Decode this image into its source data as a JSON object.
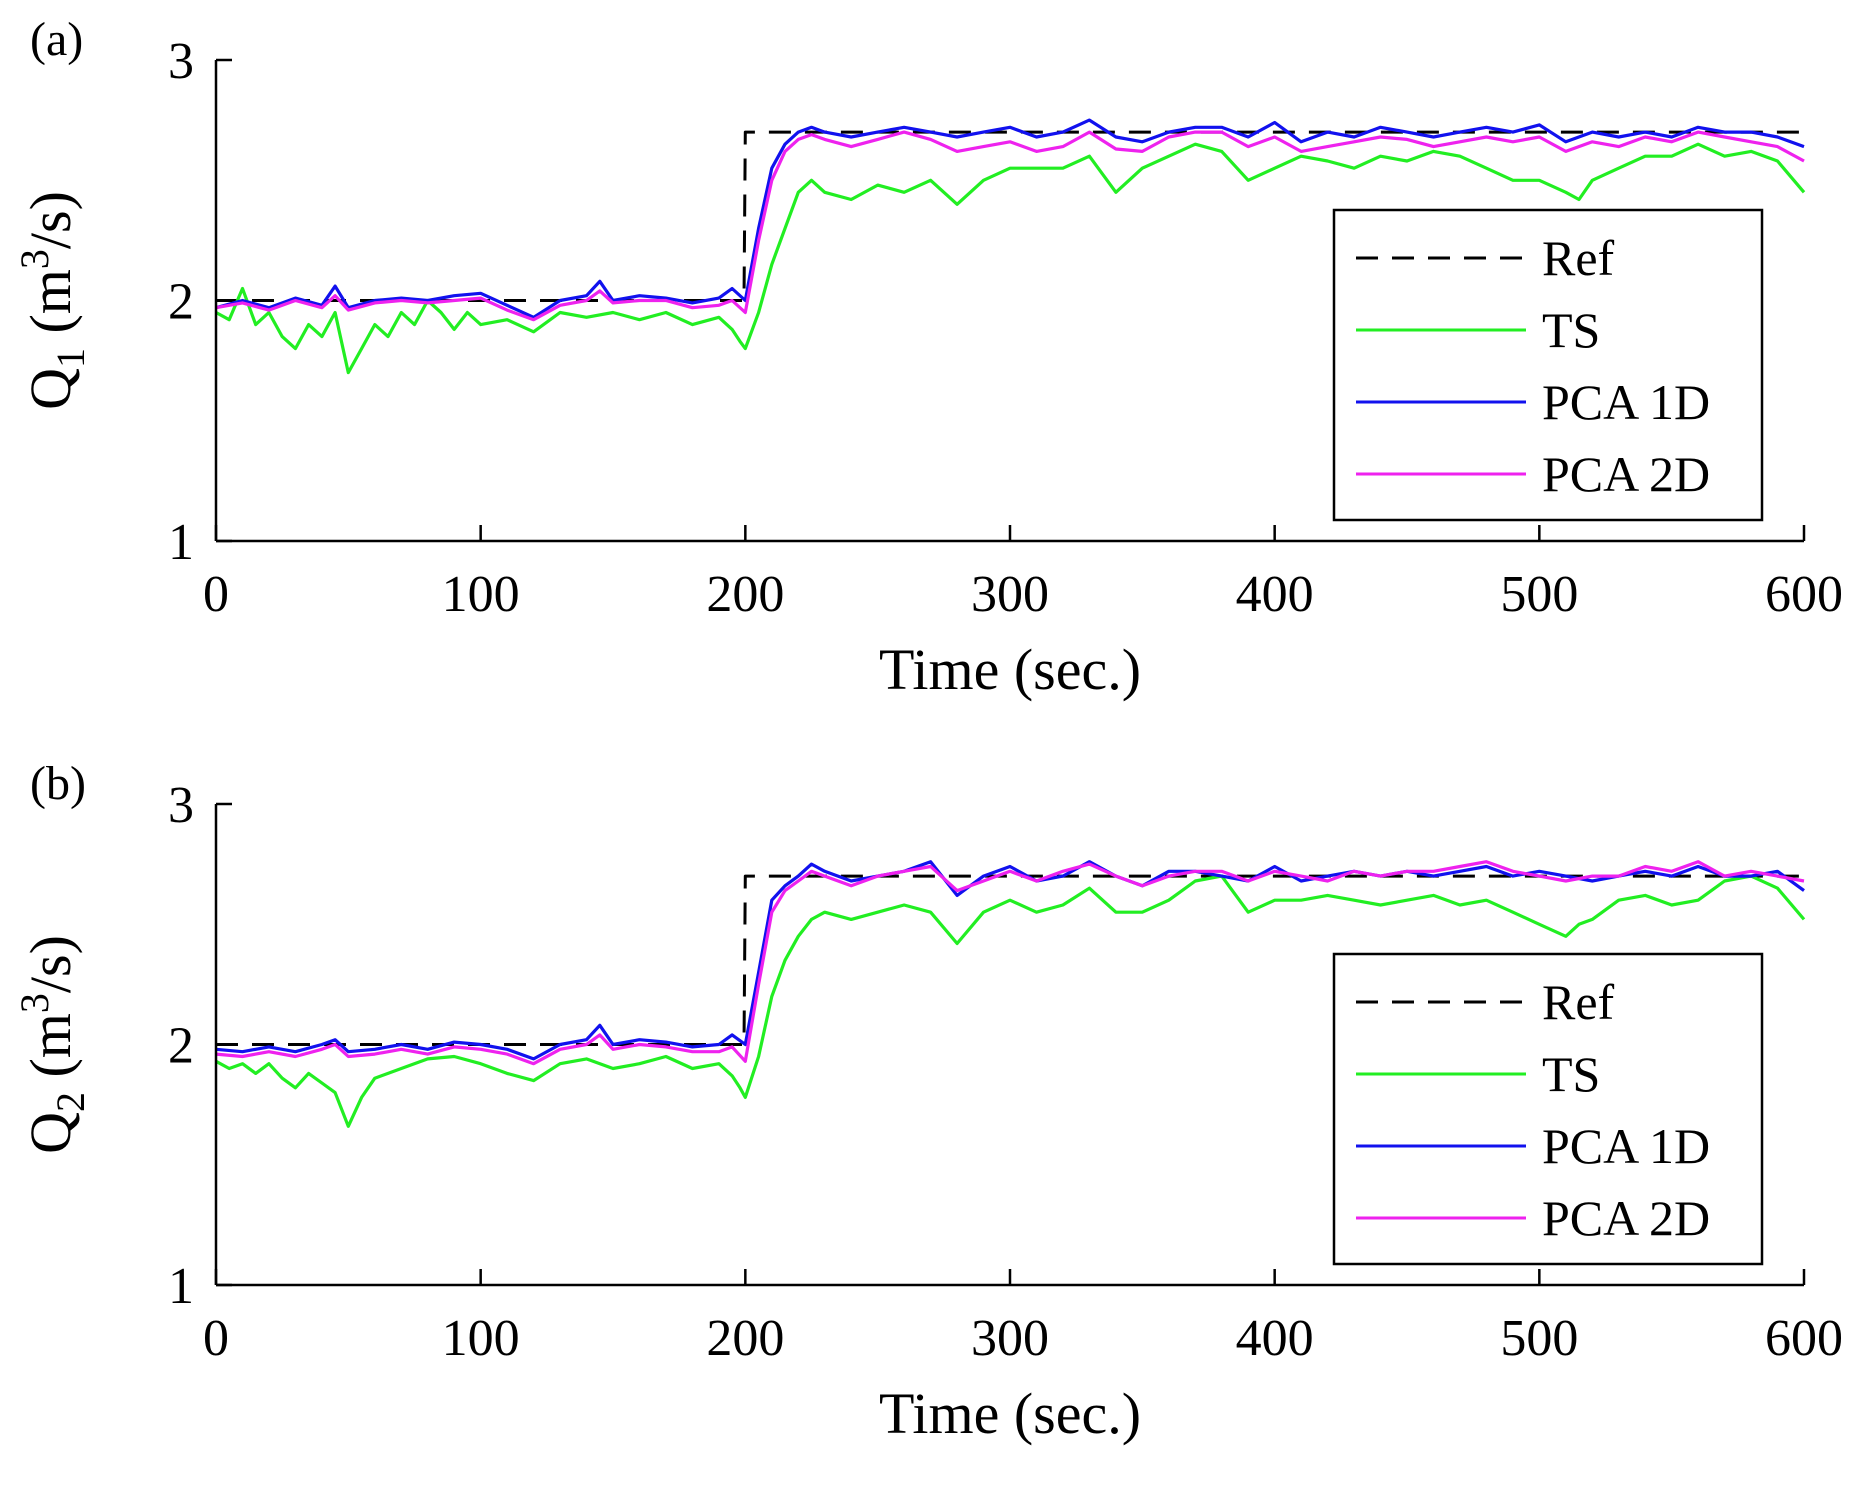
{
  "chart_data": [
    {
      "type": "line",
      "panel_label": "(a)",
      "xlabel": "Time (sec.)",
      "ylabel": {
        "base": "Q",
        "sub": "1",
        "units_pre": " (m",
        "sup": "3",
        "units_post": "/s)"
      },
      "xlim": [
        0,
        600
      ],
      "ylim": [
        1,
        3
      ],
      "xticks": [
        0,
        100,
        200,
        300,
        400,
        500,
        600
      ],
      "yticks": [
        1,
        2,
        3
      ],
      "legend_position": "right",
      "legend": [
        "Ref",
        "TS",
        "PCA 1D",
        "PCA 2D"
      ],
      "series": [
        {
          "name": "Ref",
          "color": "#000000",
          "style": "dashed",
          "x": [
            0,
            199.5,
            200,
            600
          ],
          "y": [
            2.0,
            2.0,
            2.7,
            2.7
          ]
        },
        {
          "name": "TS",
          "color": "#22ee22",
          "style": "solid",
          "x": [
            0,
            5,
            10,
            15,
            20,
            25,
            30,
            35,
            40,
            45,
            50,
            55,
            60,
            65,
            70,
            75,
            80,
            85,
            90,
            95,
            100,
            110,
            120,
            130,
            140,
            150,
            160,
            170,
            180,
            190,
            195,
            198,
            200,
            205,
            210,
            215,
            220,
            225,
            230,
            240,
            250,
            260,
            270,
            280,
            290,
            300,
            310,
            320,
            330,
            340,
            350,
            360,
            370,
            380,
            390,
            400,
            410,
            420,
            430,
            440,
            450,
            460,
            470,
            480,
            490,
            500,
            510,
            515,
            520,
            530,
            540,
            550,
            560,
            570,
            580,
            590,
            600
          ],
          "y": [
            1.95,
            1.92,
            2.05,
            1.9,
            1.95,
            1.85,
            1.8,
            1.9,
            1.85,
            1.95,
            1.7,
            1.8,
            1.9,
            1.85,
            1.95,
            1.9,
            2.0,
            1.95,
            1.88,
            1.95,
            1.9,
            1.92,
            1.87,
            1.95,
            1.93,
            1.95,
            1.92,
            1.95,
            1.9,
            1.93,
            1.88,
            1.83,
            1.8,
            1.95,
            2.15,
            2.3,
            2.45,
            2.5,
            2.45,
            2.42,
            2.48,
            2.45,
            2.5,
            2.4,
            2.5,
            2.55,
            2.55,
            2.55,
            2.6,
            2.45,
            2.55,
            2.6,
            2.65,
            2.62,
            2.5,
            2.55,
            2.6,
            2.58,
            2.55,
            2.6,
            2.58,
            2.62,
            2.6,
            2.55,
            2.5,
            2.5,
            2.45,
            2.42,
            2.5,
            2.55,
            2.6,
            2.6,
            2.65,
            2.6,
            2.62,
            2.58,
            2.45
          ]
        },
        {
          "name": "PCA 1D",
          "color": "#1111ee",
          "style": "solid",
          "x": [
            0,
            10,
            20,
            30,
            40,
            45,
            50,
            60,
            70,
            80,
            90,
            100,
            110,
            120,
            130,
            140,
            145,
            150,
            160,
            170,
            180,
            190,
            195,
            200,
            205,
            210,
            215,
            220,
            225,
            230,
            240,
            250,
            260,
            270,
            280,
            290,
            300,
            310,
            320,
            330,
            340,
            350,
            360,
            370,
            380,
            390,
            400,
            410,
            420,
            430,
            440,
            450,
            460,
            470,
            480,
            490,
            500,
            510,
            520,
            530,
            540,
            550,
            560,
            570,
            580,
            590,
            600
          ],
          "y": [
            1.97,
            2.0,
            1.97,
            2.01,
            1.98,
            2.06,
            1.97,
            2.0,
            2.01,
            2.0,
            2.02,
            2.03,
            1.98,
            1.93,
            2.0,
            2.02,
            2.08,
            2.0,
            2.02,
            2.01,
            1.99,
            2.01,
            2.05,
            2.0,
            2.3,
            2.55,
            2.65,
            2.7,
            2.72,
            2.7,
            2.68,
            2.7,
            2.72,
            2.7,
            2.68,
            2.7,
            2.72,
            2.68,
            2.7,
            2.75,
            2.68,
            2.66,
            2.7,
            2.72,
            2.72,
            2.68,
            2.74,
            2.66,
            2.7,
            2.68,
            2.72,
            2.7,
            2.68,
            2.7,
            2.72,
            2.7,
            2.73,
            2.66,
            2.7,
            2.68,
            2.7,
            2.68,
            2.72,
            2.7,
            2.7,
            2.68,
            2.64
          ]
        },
        {
          "name": "PCA 2D",
          "color": "#ee22ee",
          "style": "solid",
          "x": [
            0,
            10,
            20,
            30,
            40,
            45,
            50,
            60,
            70,
            80,
            90,
            100,
            110,
            120,
            130,
            140,
            145,
            150,
            160,
            170,
            180,
            190,
            195,
            200,
            205,
            210,
            215,
            220,
            225,
            230,
            240,
            250,
            260,
            270,
            280,
            290,
            300,
            310,
            320,
            330,
            340,
            350,
            360,
            370,
            380,
            390,
            400,
            410,
            420,
            430,
            440,
            450,
            460,
            470,
            480,
            490,
            500,
            510,
            520,
            530,
            540,
            550,
            560,
            570,
            580,
            590,
            600
          ],
          "y": [
            1.97,
            1.99,
            1.96,
            2.0,
            1.97,
            2.02,
            1.96,
            1.99,
            2.0,
            1.99,
            2.0,
            2.01,
            1.96,
            1.92,
            1.98,
            2.0,
            2.04,
            1.99,
            2.0,
            2.0,
            1.97,
            1.98,
            2.0,
            1.95,
            2.25,
            2.5,
            2.62,
            2.67,
            2.69,
            2.67,
            2.64,
            2.67,
            2.7,
            2.67,
            2.62,
            2.64,
            2.66,
            2.62,
            2.64,
            2.7,
            2.63,
            2.62,
            2.68,
            2.7,
            2.7,
            2.64,
            2.68,
            2.62,
            2.64,
            2.66,
            2.68,
            2.67,
            2.64,
            2.66,
            2.68,
            2.66,
            2.68,
            2.62,
            2.66,
            2.64,
            2.68,
            2.66,
            2.7,
            2.68,
            2.66,
            2.64,
            2.58
          ]
        }
      ]
    },
    {
      "type": "line",
      "panel_label": "(b)",
      "xlabel": "Time (sec.)",
      "ylabel": {
        "base": "Q",
        "sub": "2",
        "units_pre": " (m",
        "sup": "3",
        "units_post": "/s)"
      },
      "xlim": [
        0,
        600
      ],
      "ylim": [
        1,
        3
      ],
      "xticks": [
        0,
        100,
        200,
        300,
        400,
        500,
        600
      ],
      "yticks": [
        1,
        2,
        3
      ],
      "legend_position": "right",
      "legend": [
        "Ref",
        "TS",
        "PCA 1D",
        "PCA 2D"
      ],
      "series": [
        {
          "name": "Ref",
          "color": "#000000",
          "style": "dashed",
          "x": [
            0,
            199.5,
            200,
            600
          ],
          "y": [
            2.0,
            2.0,
            2.7,
            2.7
          ]
        },
        {
          "name": "TS",
          "color": "#22ee22",
          "style": "solid",
          "x": [
            0,
            5,
            10,
            15,
            20,
            25,
            30,
            35,
            40,
            45,
            50,
            55,
            60,
            70,
            80,
            90,
            100,
            110,
            120,
            130,
            140,
            150,
            160,
            170,
            180,
            190,
            195,
            198,
            200,
            205,
            210,
            215,
            220,
            225,
            230,
            240,
            250,
            260,
            270,
            280,
            290,
            300,
            310,
            320,
            330,
            340,
            350,
            360,
            370,
            380,
            390,
            400,
            410,
            420,
            430,
            440,
            450,
            460,
            470,
            480,
            490,
            500,
            510,
            515,
            520,
            530,
            540,
            550,
            560,
            570,
            580,
            590,
            600
          ],
          "y": [
            1.93,
            1.9,
            1.92,
            1.88,
            1.92,
            1.86,
            1.82,
            1.88,
            1.84,
            1.8,
            1.66,
            1.78,
            1.86,
            1.9,
            1.94,
            1.95,
            1.92,
            1.88,
            1.85,
            1.92,
            1.94,
            1.9,
            1.92,
            1.95,
            1.9,
            1.92,
            1.87,
            1.82,
            1.78,
            1.95,
            2.2,
            2.35,
            2.45,
            2.52,
            2.55,
            2.52,
            2.55,
            2.58,
            2.55,
            2.42,
            2.55,
            2.6,
            2.55,
            2.58,
            2.65,
            2.55,
            2.55,
            2.6,
            2.68,
            2.7,
            2.55,
            2.6,
            2.6,
            2.62,
            2.6,
            2.58,
            2.6,
            2.62,
            2.58,
            2.6,
            2.55,
            2.5,
            2.45,
            2.5,
            2.52,
            2.6,
            2.62,
            2.58,
            2.6,
            2.68,
            2.7,
            2.65,
            2.52
          ]
        },
        {
          "name": "PCA 1D",
          "color": "#1111ee",
          "style": "solid",
          "x": [
            0,
            10,
            20,
            30,
            40,
            45,
            50,
            60,
            70,
            80,
            90,
            100,
            110,
            120,
            130,
            140,
            145,
            150,
            160,
            170,
            180,
            190,
            195,
            200,
            205,
            210,
            215,
            220,
            225,
            230,
            240,
            250,
            260,
            270,
            280,
            290,
            300,
            310,
            320,
            330,
            340,
            350,
            360,
            370,
            380,
            390,
            400,
            410,
            420,
            430,
            440,
            450,
            460,
            470,
            480,
            490,
            500,
            510,
            520,
            530,
            540,
            550,
            560,
            570,
            580,
            590,
            600
          ],
          "y": [
            1.98,
            1.97,
            1.99,
            1.97,
            2.0,
            2.02,
            1.97,
            1.98,
            2.0,
            1.98,
            2.01,
            2.0,
            1.98,
            1.94,
            2.0,
            2.02,
            2.08,
            2.0,
            2.02,
            2.01,
            1.99,
            2.0,
            2.04,
            2.0,
            2.3,
            2.6,
            2.66,
            2.7,
            2.75,
            2.72,
            2.68,
            2.7,
            2.72,
            2.76,
            2.62,
            2.7,
            2.74,
            2.68,
            2.7,
            2.76,
            2.7,
            2.66,
            2.72,
            2.72,
            2.7,
            2.68,
            2.74,
            2.68,
            2.7,
            2.72,
            2.7,
            2.72,
            2.7,
            2.72,
            2.74,
            2.7,
            2.72,
            2.7,
            2.68,
            2.7,
            2.72,
            2.7,
            2.74,
            2.7,
            2.7,
            2.72,
            2.64
          ]
        },
        {
          "name": "PCA 2D",
          "color": "#ee22ee",
          "style": "solid",
          "x": [
            0,
            10,
            20,
            30,
            40,
            45,
            50,
            60,
            70,
            80,
            90,
            100,
            110,
            120,
            130,
            140,
            145,
            150,
            160,
            170,
            180,
            190,
            195,
            200,
            205,
            210,
            215,
            220,
            225,
            230,
            240,
            250,
            260,
            270,
            280,
            290,
            300,
            310,
            320,
            330,
            340,
            350,
            360,
            370,
            380,
            390,
            400,
            410,
            420,
            430,
            440,
            450,
            460,
            470,
            480,
            490,
            500,
            510,
            520,
            530,
            540,
            550,
            560,
            570,
            580,
            590,
            600
          ],
          "y": [
            1.96,
            1.95,
            1.97,
            1.95,
            1.98,
            2.0,
            1.95,
            1.96,
            1.98,
            1.96,
            1.99,
            1.98,
            1.96,
            1.92,
            1.98,
            2.0,
            2.04,
            1.98,
            2.0,
            1.99,
            1.97,
            1.97,
            1.99,
            1.93,
            2.25,
            2.55,
            2.64,
            2.68,
            2.72,
            2.7,
            2.66,
            2.7,
            2.72,
            2.74,
            2.64,
            2.68,
            2.72,
            2.68,
            2.72,
            2.75,
            2.7,
            2.66,
            2.7,
            2.72,
            2.72,
            2.68,
            2.72,
            2.7,
            2.68,
            2.72,
            2.7,
            2.72,
            2.72,
            2.74,
            2.76,
            2.72,
            2.7,
            2.68,
            2.7,
            2.7,
            2.74,
            2.72,
            2.76,
            2.7,
            2.72,
            2.7,
            2.68
          ]
        }
      ]
    }
  ]
}
